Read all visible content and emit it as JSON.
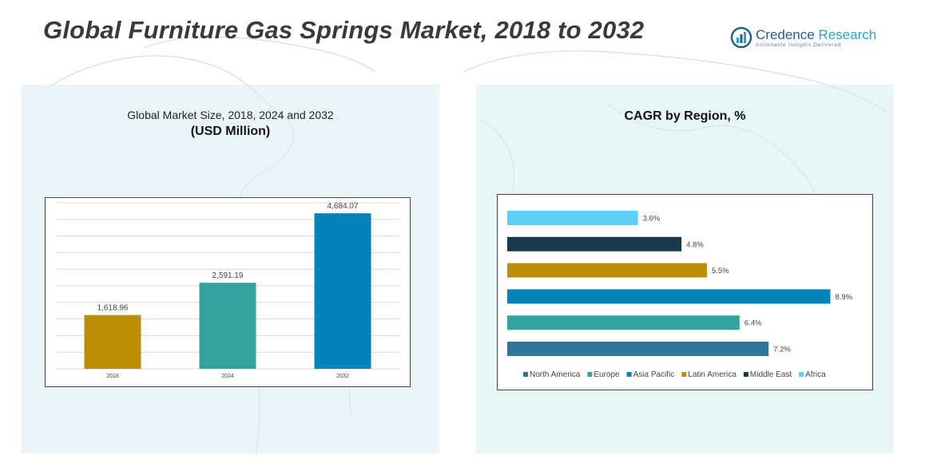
{
  "header": {
    "title": "Global Furniture Gas Springs Market, 2018 to 2032"
  },
  "logo": {
    "name_main": "Credence",
    "name_sub": " Research",
    "tagline": "Actionable Insights Delivered"
  },
  "colors": {
    "bar_gold": "#B98E05",
    "bar_teal": "#32A39E",
    "bar_blue": "#0284BA",
    "north_america": "#2E7799",
    "europe": "#33A39E",
    "asia_pacific": "#0283B7",
    "latin_america": "#BA8F05",
    "middle_east": "#1A3A4C",
    "africa": "#5ED0F7"
  },
  "chart_data": [
    {
      "type": "bar",
      "title": "Global Market Size, 2018, 2024 and 2032",
      "subtitle": "(USD Million)",
      "categories": [
        "2018",
        "2024",
        "2032"
      ],
      "values": [
        1618.96,
        2591.19,
        4684.07
      ],
      "value_labels": [
        "1,618.96",
        "2,591.19",
        "4,684.07"
      ],
      "bar_colors": [
        "#B98E05",
        "#32A39E",
        "#0284BA"
      ],
      "ylim": [
        0,
        5000
      ],
      "grid": true,
      "xlabel": "",
      "ylabel": ""
    },
    {
      "type": "bar",
      "orientation": "horizontal",
      "title": "CAGR by Region, %",
      "series": [
        {
          "name": "North America",
          "value": 7.2,
          "label": "7.2%",
          "color": "#2E7799"
        },
        {
          "name": "Europe",
          "value": 6.4,
          "label": "6.4%",
          "color": "#33A39E"
        },
        {
          "name": "Asia Pacific",
          "value": 8.9,
          "label": "8.9%",
          "color": "#0283B7"
        },
        {
          "name": "Latin America",
          "value": 5.5,
          "label": "5.5%",
          "color": "#BA8F05"
        },
        {
          "name": "Middle East",
          "value": 4.8,
          "label": "4.8%",
          "color": "#1A3A4C"
        },
        {
          "name": "Africa",
          "value": 3.6,
          "label": "3.6%",
          "color": "#5ED0F7"
        }
      ],
      "xlim": [
        0,
        9.0
      ],
      "legend": "bottom",
      "grid": false
    }
  ]
}
